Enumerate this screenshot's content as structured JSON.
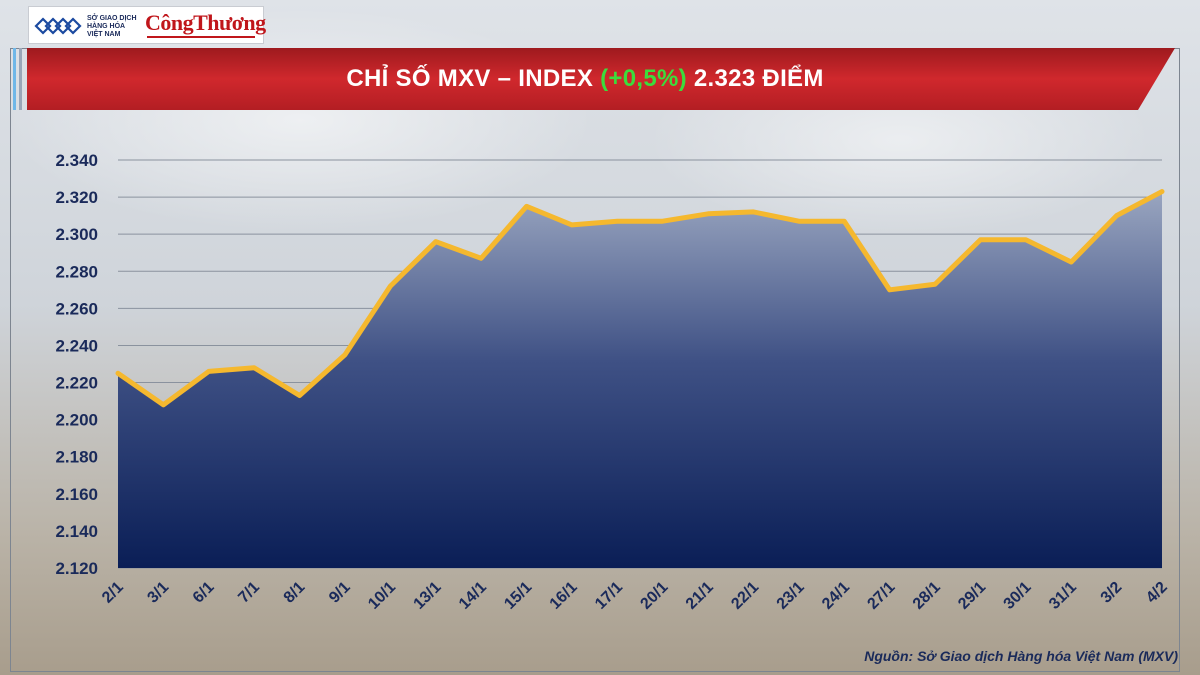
{
  "header": {
    "logo_mxv_lines": [
      "SỞ GIAO DỊCH",
      "HÀNG HÓA",
      "VIỆT NAM"
    ],
    "logo_ct": "CôngThương"
  },
  "title": {
    "main": "CHỈ SỐ MXV – INDEX",
    "change": "(+0,5%)",
    "value": "2.323 ĐIỂM"
  },
  "colors": {
    "banner": "#c8252a",
    "line": "#f5b82e",
    "area_top": "#9aa6c0",
    "area_bottom": "#0a1e56",
    "change_text": "#3cdc3c",
    "axis_text": "#1a2a5a"
  },
  "source": "Nguồn: Sở Giao dịch Hàng hóa Việt Nam (MXV)",
  "chart_data": {
    "type": "area",
    "title": "CHỈ SỐ MXV – INDEX (+0,5%) 2.323 ĐIỂM",
    "categories": [
      "2/1",
      "3/1",
      "6/1",
      "7/1",
      "8/1",
      "9/1",
      "10/1",
      "13/1",
      "14/1",
      "15/1",
      "16/1",
      "17/1",
      "20/1",
      "21/1",
      "22/1",
      "23/1",
      "24/1",
      "27/1",
      "28/1",
      "29/1",
      "30/1",
      "31/1",
      "3/2",
      "4/2"
    ],
    "series": [
      {
        "values": [
          2225,
          2208,
          2226,
          2228,
          2213,
          2235,
          2272,
          2296,
          2287,
          2315,
          2305,
          2307,
          2307,
          2311,
          2312,
          2307,
          2307,
          2270,
          2273,
          2297,
          2297,
          2285,
          2310,
          2323
        ]
      }
    ],
    "ylim": [
      2120,
      2340
    ],
    "yticks": [
      2120,
      2140,
      2160,
      2180,
      2200,
      2220,
      2240,
      2260,
      2280,
      2300,
      2320,
      2340
    ],
    "ytick_labels": [
      "2.120",
      "2.140",
      "2.160",
      "2.180",
      "2.200",
      "2.220",
      "2.240",
      "2.260",
      "2.280",
      "2.300",
      "2.320",
      "2.340"
    ],
    "grid": true,
    "legend": "none"
  }
}
